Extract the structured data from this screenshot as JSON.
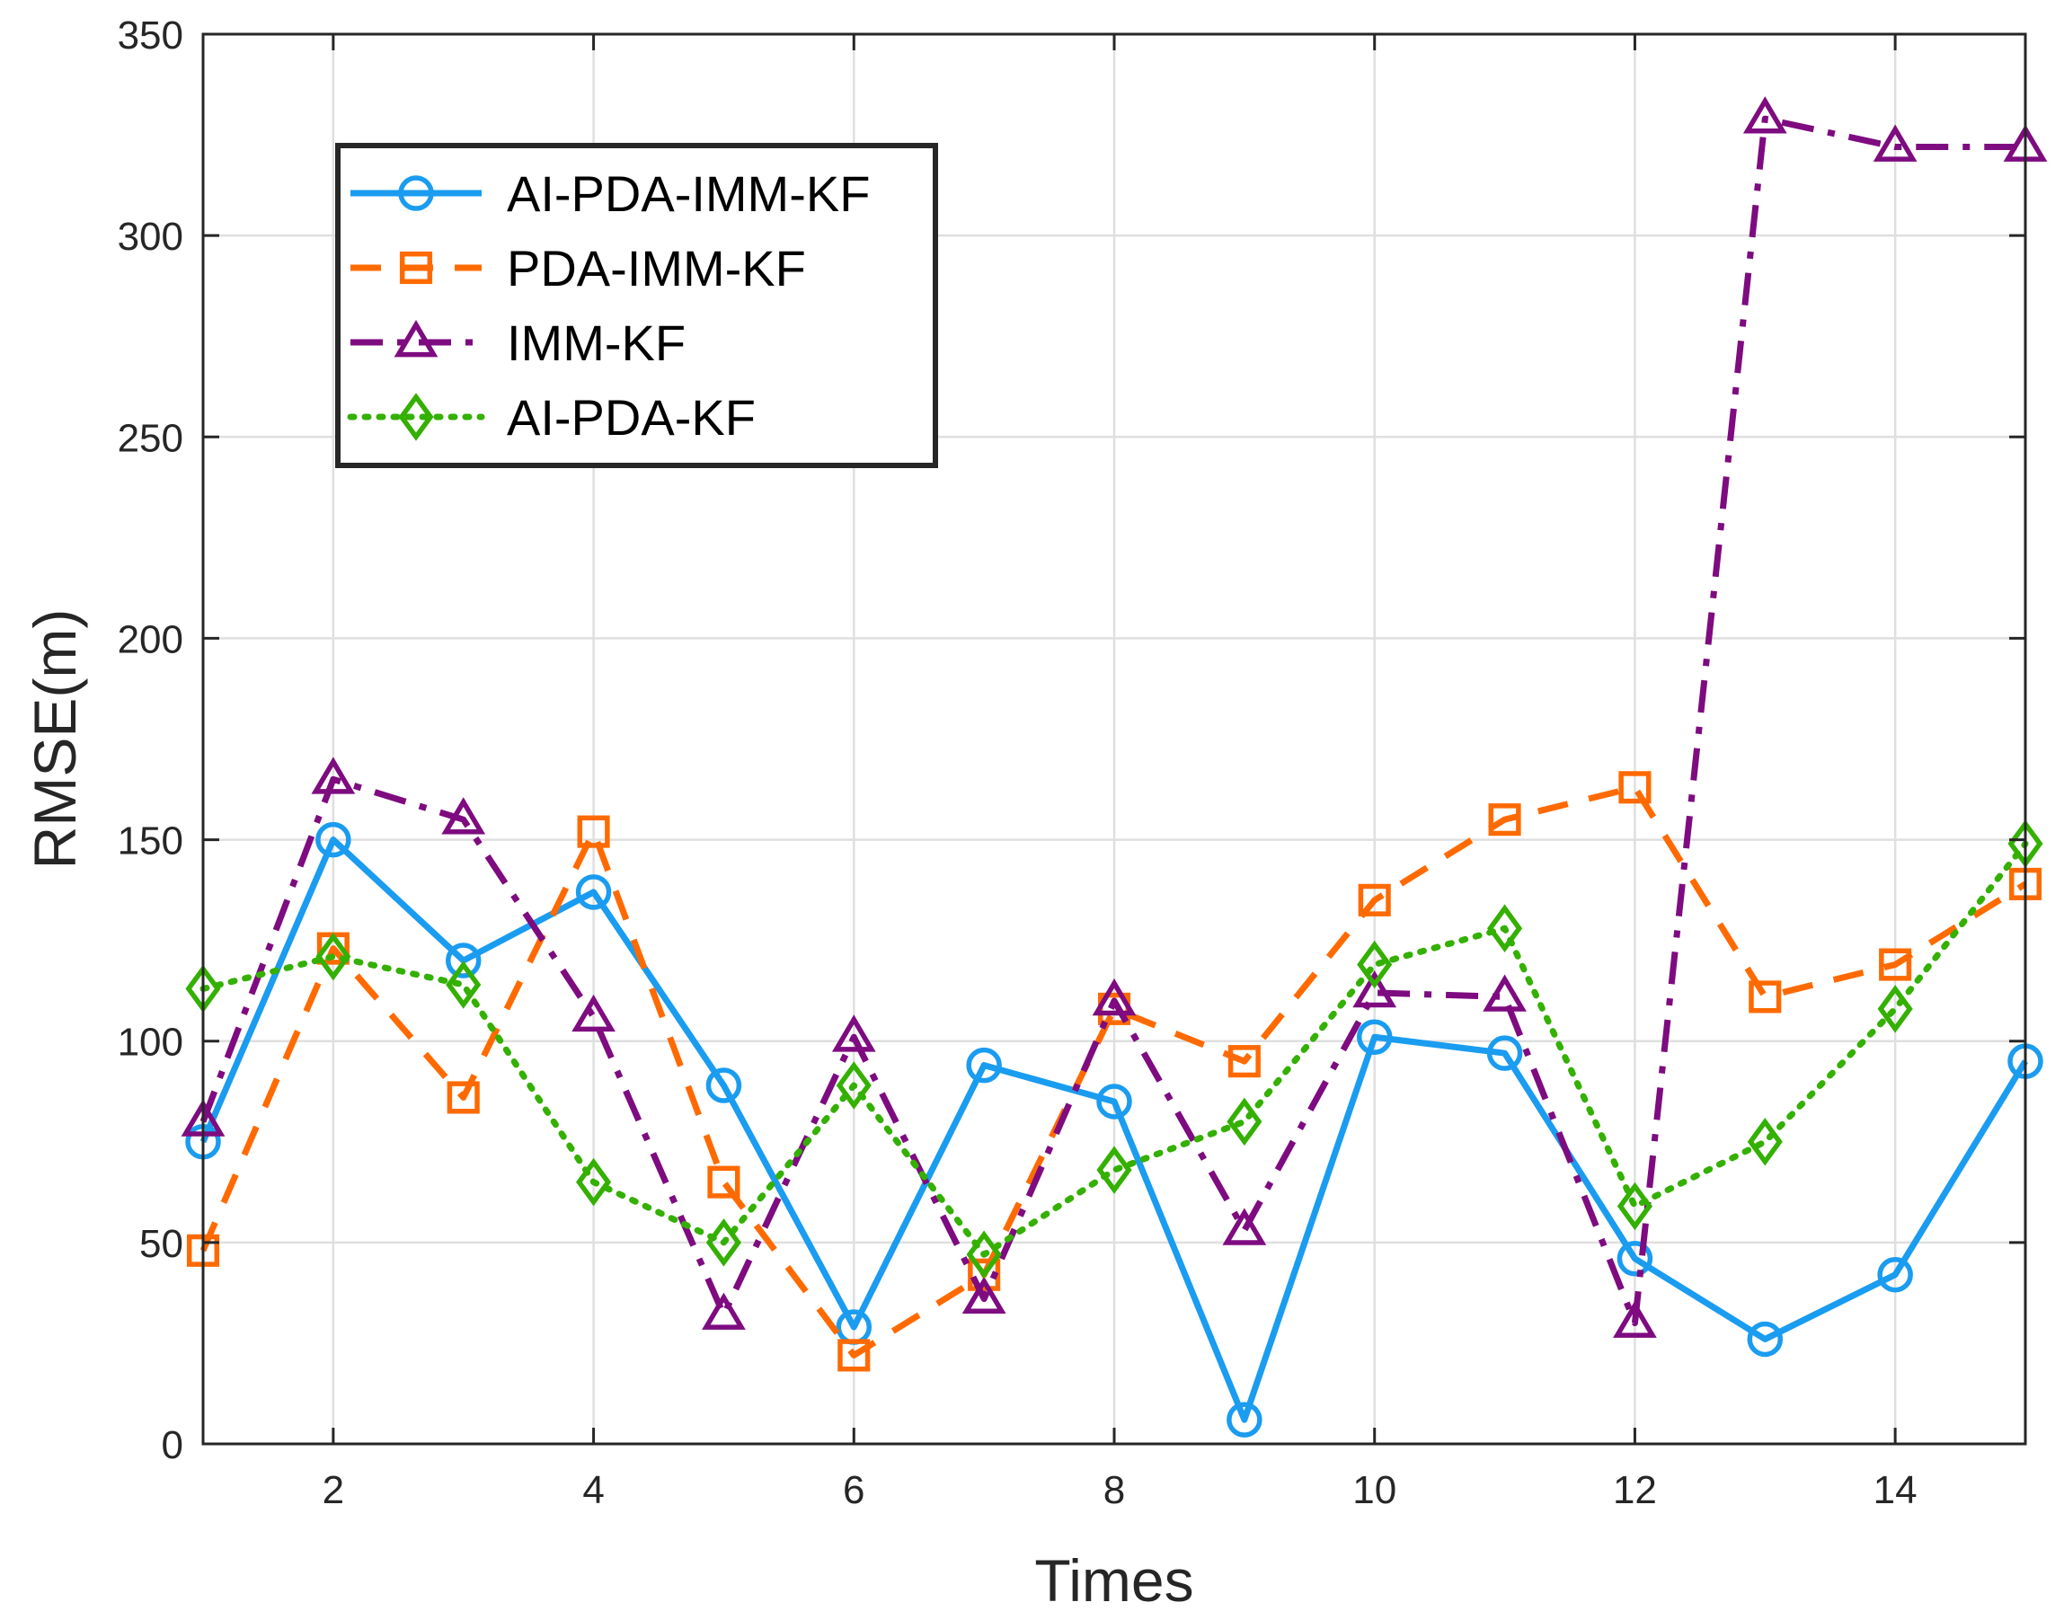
{
  "chart_data": {
    "type": "line",
    "xlabel": "Times",
    "ylabel": "RMSE(m)",
    "xlim": [
      1,
      15
    ],
    "ylim": [
      0,
      350
    ],
    "xticks": [
      2,
      4,
      6,
      8,
      10,
      12,
      14
    ],
    "yticks": [
      0,
      50,
      100,
      150,
      200,
      250,
      300,
      350
    ],
    "grid": true,
    "legend_position": "top-left",
    "x": [
      1,
      2,
      3,
      4,
      5,
      6,
      7,
      8,
      9,
      10,
      11,
      12,
      13,
      14,
      15
    ],
    "series": [
      {
        "name": "AI-PDA-IMM-KF",
        "color": "#1a9cf0",
        "line_style": "solid",
        "marker": "circle",
        "values": [
          75,
          150,
          120,
          137,
          89,
          29,
          94,
          85,
          6,
          101,
          97,
          46,
          26,
          42,
          95
        ]
      },
      {
        "name": "PDA-IMM-KF",
        "color": "#ff6a00",
        "line_style": "dashed",
        "marker": "square",
        "values": [
          48,
          123,
          86,
          152,
          65,
          22,
          42,
          108,
          95,
          135,
          155,
          163,
          111,
          119,
          139
        ]
      },
      {
        "name": "IMM-KF",
        "color": "#7e0b80",
        "line_style": "dashdot",
        "marker": "triangle",
        "values": [
          80,
          165,
          155,
          106,
          32,
          101,
          36,
          110,
          53,
          112,
          111,
          30,
          329,
          322,
          322
        ]
      },
      {
        "name": "AI-PDA-KF",
        "color": "#33b000",
        "line_style": "dotted",
        "marker": "diamond",
        "values": [
          113,
          121,
          114,
          65,
          50,
          89,
          47,
          68,
          80,
          119,
          128,
          59,
          75,
          108,
          149
        ]
      }
    ]
  }
}
